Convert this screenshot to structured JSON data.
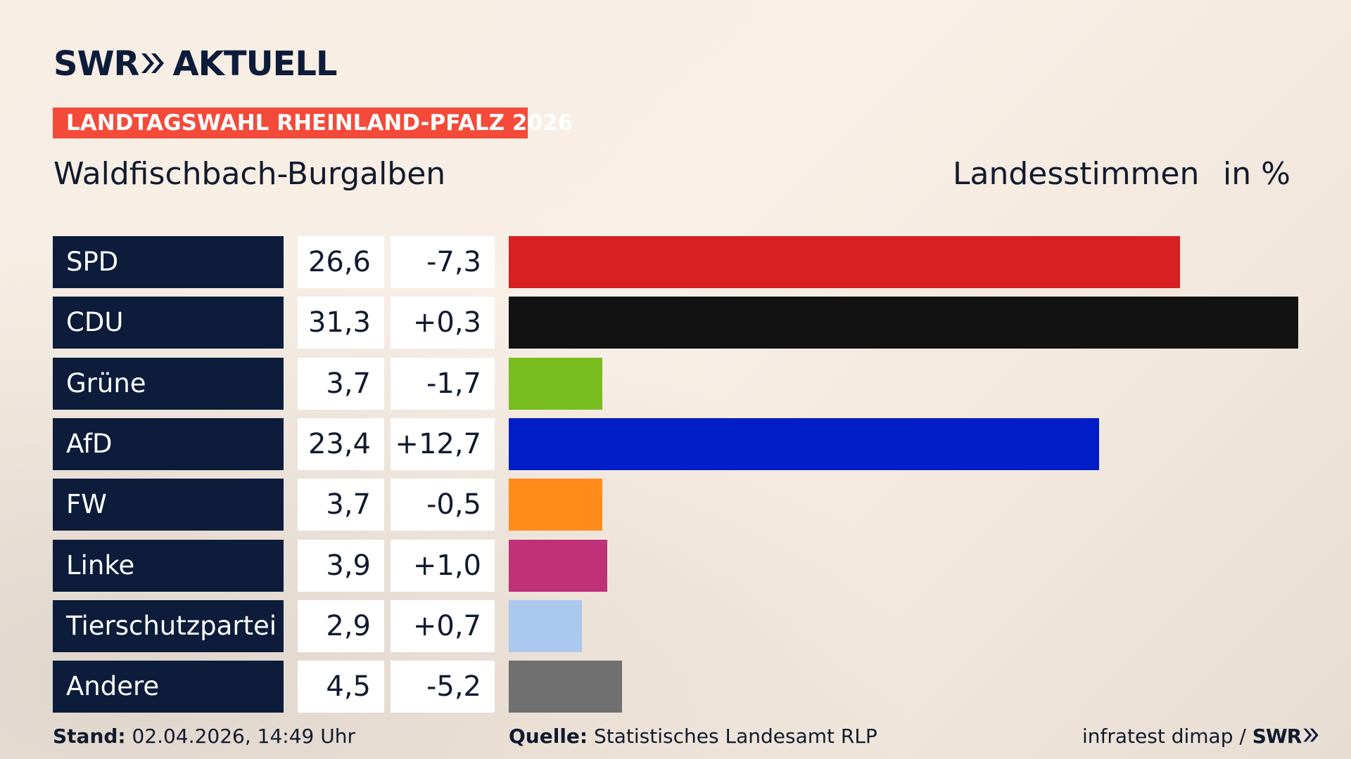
{
  "header": {
    "brand": "SWR",
    "brand_suffix": "AKTUELL",
    "tag": "LANDTAGSWAHL RHEINLAND-PFALZ 2026",
    "region": "Waldfischbach-Burgalben",
    "measure": "Landesstimmen",
    "unit": "in %"
  },
  "chart_data": {
    "type": "bar",
    "orientation": "horizontal",
    "categories": [
      "SPD",
      "CDU",
      "Grüne",
      "AfD",
      "FW",
      "Linke",
      "Tierschutzpartei",
      "Andere"
    ],
    "values": [
      26.6,
      31.3,
      3.7,
      23.4,
      3.7,
      3.9,
      2.9,
      4.5
    ],
    "value_labels": [
      "26,6",
      "31,3",
      "3,7",
      "23,4",
      "3,7",
      "3,9",
      "2,9",
      "4,5"
    ],
    "diff_labels": [
      "-7,3",
      "+0,3",
      "-1,7",
      "+12,7",
      "-0,5",
      "+1,0",
      "+0,7",
      "-5,2"
    ],
    "colors": [
      "#d81f21",
      "#121212",
      "#78bd1e",
      "#001ec8",
      "#ff8c1a",
      "#bf3178",
      "#abc8ee",
      "#707070"
    ],
    "xlim": [
      0,
      31.3
    ]
  },
  "footer": {
    "stand_label": "Stand:",
    "stand_value": "02.04.2026, 14:49 Uhr",
    "quelle_label": "Quelle:",
    "quelle_value": "Statistisches Landesamt RLP",
    "credit": "infratest dimap /",
    "credit_brand": "SWR"
  },
  "colors": {
    "navy": "#0c1c3a",
    "accent": "#f44a3a"
  }
}
